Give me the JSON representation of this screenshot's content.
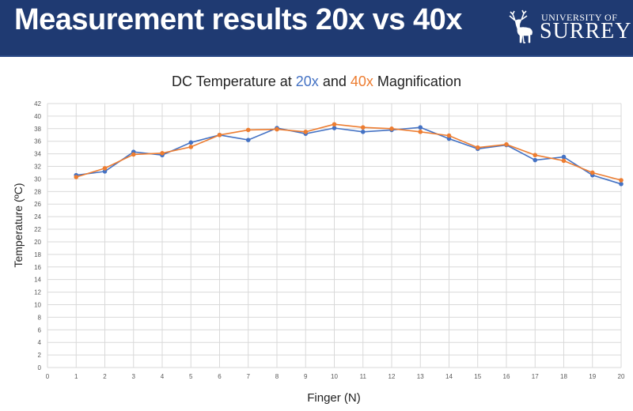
{
  "header": {
    "title": "Measurement results 20x vs 40x",
    "logo_line1": "UNIVERSITY OF",
    "logo_line2": "SURREY",
    "background": "#1f3a72"
  },
  "chart_data": {
    "type": "line",
    "title_parts": [
      "DC Temperature at ",
      "20x",
      " and ",
      "40x",
      " Magnification"
    ],
    "xlabel": "Finger (N)",
    "ylabel": "Temperature (ºC)",
    "xlim": [
      0,
      20
    ],
    "ylim": [
      0,
      42
    ],
    "ytick_step": 2,
    "xtick_step": 1,
    "grid": true,
    "legend": "none",
    "x": [
      1,
      2,
      3,
      4,
      5,
      6,
      7,
      8,
      9,
      10,
      11,
      12,
      13,
      14,
      15,
      16,
      17,
      18,
      19,
      20
    ],
    "series": [
      {
        "name": "20x",
        "color": "#4472c4",
        "values": [
          30.6,
          31.2,
          34.3,
          33.8,
          35.8,
          37.0,
          36.2,
          38.1,
          37.2,
          38.1,
          37.5,
          37.8,
          38.2,
          36.4,
          34.8,
          35.4,
          33.0,
          33.5,
          30.6,
          29.2
        ]
      },
      {
        "name": "40x",
        "color": "#ed7d31",
        "values": [
          30.3,
          31.7,
          33.9,
          34.1,
          35.1,
          37.0,
          37.8,
          37.9,
          37.5,
          38.7,
          38.2,
          38.0,
          37.5,
          36.9,
          35.0,
          35.5,
          33.8,
          32.9,
          31.0,
          29.8
        ]
      }
    ]
  }
}
